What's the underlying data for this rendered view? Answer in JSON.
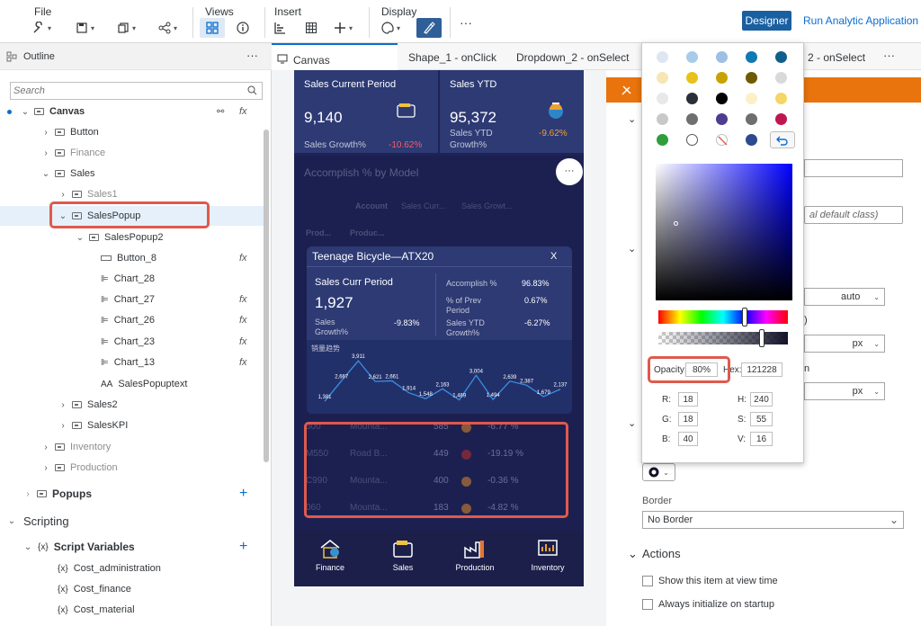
{
  "toolbar": {
    "groups": [
      {
        "label": "File"
      },
      {
        "label": "Views"
      },
      {
        "label": "Insert"
      },
      {
        "label": "Display"
      }
    ],
    "designer_label": "Designer",
    "run_label": "Run Analytic Application",
    "more": "···"
  },
  "outline": {
    "title": "Outline",
    "more": "···",
    "search_placeholder": "Search",
    "items": [
      {
        "label": "Canvas"
      },
      {
        "label": "Button"
      },
      {
        "label": "Finance"
      },
      {
        "label": "Sales"
      },
      {
        "label": "Sales1"
      },
      {
        "label": "SalesPopup"
      },
      {
        "label": "SalesPopup2"
      },
      {
        "label": "Button_8"
      },
      {
        "label": "Chart_28"
      },
      {
        "label": "Chart_27"
      },
      {
        "label": "Chart_26"
      },
      {
        "label": "Chart_23"
      },
      {
        "label": "Chart_13"
      },
      {
        "label": "SalesPopuptext"
      },
      {
        "label": "Sales2"
      },
      {
        "label": "SalesKPI"
      },
      {
        "label": "Inventory"
      },
      {
        "label": "Production"
      }
    ],
    "fx": "fx",
    "popups_label": "Popups",
    "scripting_label": "Scripting",
    "script_vars_label": "Script Variables",
    "vars": [
      "Cost_administration",
      "Cost_finance",
      "Cost_material"
    ],
    "plus": "+"
  },
  "tabs": [
    {
      "label": "Canvas"
    },
    {
      "label": "Shape_1 - onClick"
    },
    {
      "label": "Dropdown_2 - onSelect"
    },
    {
      "label": "2 - onSelect"
    }
  ],
  "tabs_more": "···",
  "canvas": {
    "kpi1_title": "Sales Current Period",
    "kpi1_value": "9,140",
    "kpi1_sub": "Sales Growth%",
    "kpi1_delta": "-10.62%",
    "kpi2_title": "Sales YTD",
    "kpi2_value": "95,372",
    "kpi2_sub1": "Sales YTD",
    "kpi2_sub2": "Growth%",
    "kpi2_delta": "-9.62%",
    "chart_title": "Accomplish % by Model",
    "chart_more": "···",
    "col_account": "Account",
    "col_sales_curr": "Sales Curr...",
    "col_sales_growt": "Sales Growt...",
    "col_prod1": "Prod...",
    "col_prod2": "Produc...",
    "popup": {
      "title": "Teenage Bicycle—ATX20",
      "close": "X",
      "curr_period": "Sales Curr Period",
      "curr_value": "1,927",
      "growth_label1": "Sales",
      "growth_label2": "Growth%",
      "growth_value": "-9.83%",
      "accomplish_label": "Accomplish %",
      "accomplish_value": "96.83%",
      "prev_label1": "% of Prev",
      "prev_label2": "Period",
      "prev_value": "0.67%",
      "ytd_label1": "Sales YTD",
      "ytd_label2": "Growth%",
      "ytd_value": "-6.27%",
      "trend_title": "销量趋势",
      "trend_labels": [
        "1,381",
        "2,667",
        "3,911",
        "2,621",
        "2,661",
        "1,914",
        "1,548",
        "2,163",
        "1,469",
        "3,004",
        "1,494",
        "2,639",
        "2,387",
        "1,679",
        "2,137"
      ]
    },
    "rows": [
      {
        "code": "300",
        "name": "Mounta...",
        "value": "585",
        "pct": "-6.77 %",
        "dot": "#e08a2a"
      },
      {
        "code": "M550",
        "name": "Road B...",
        "value": "449",
        "pct": "-19.19 %",
        "dot": "#c0302b"
      },
      {
        "code": "C990",
        "name": "Mounta...",
        "value": "400",
        "pct": "-0.36 %",
        "dot": "#e08a2a"
      },
      {
        "code": "060",
        "name": "Mounta...",
        "value": "183",
        "pct": "-4.82 %",
        "dot": "#e08a2a"
      }
    ],
    "nav": [
      "Finance",
      "Sales",
      "Production",
      "Inventory"
    ]
  },
  "right_panel": {
    "field2_partial": "al default class)",
    "auto": "auto",
    "paren": ")",
    "px1": "px",
    "n_char": "n",
    "px2": "px",
    "border_label": "Border",
    "border_value": "No Border",
    "actions_label": "Actions",
    "show_label": "Show this item at view time",
    "init_label": "Always initialize on startup"
  },
  "picker": {
    "swatches": [
      "#dde7f2",
      "#a8cbea",
      "#9dbfe4",
      "#0f79b4",
      "#0f5f8c",
      "#f5e6b4",
      "#e8c21a",
      "#c8a200",
      "#6f5a00",
      "#d9d9d9",
      "#e8e8e8",
      "#2a2f38",
      "#000000",
      "#fbf0c8",
      "#f5d564",
      "#c8c8c8",
      "#6f6f6f",
      "#4e3c91",
      "#6e6e6e",
      "#c0164e",
      "#2f9e3a",
      "#ffffff",
      "none",
      "#2c4a8c",
      "reset"
    ],
    "opacity_label": "Opacity:",
    "opacity_value": "80%",
    "hex_label": "Hex:",
    "hex_value": "121228",
    "r_label": "R:",
    "r_value": "18",
    "g_label": "G:",
    "g_value": "18",
    "b_label": "B:",
    "b_value": "40",
    "h_label": "H:",
    "h_value": "240",
    "s_label": "S:",
    "s_value": "55",
    "v_label": "V:",
    "v_value": "16"
  }
}
